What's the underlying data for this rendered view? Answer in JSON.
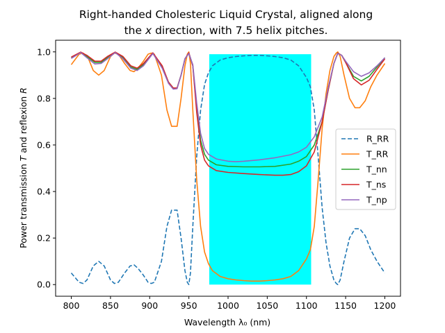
{
  "chart_data": {
    "type": "line",
    "title_line1": "Right-handed Cholesteric Liquid Crystal, aligned along",
    "title_line2": "the x direction, with 7.5 helix pitches.",
    "xlabel": "Wavelength λ₀ (nm)",
    "ylabel": "Power transmission T and reflexion R",
    "xlim": [
      780,
      1220
    ],
    "ylim": [
      -0.05,
      1.05
    ],
    "xticks": [
      800,
      850,
      900,
      950,
      1000,
      1050,
      1100,
      1150,
      1200
    ],
    "yticks": [
      0.0,
      0.2,
      0.4,
      0.6,
      0.8,
      1.0
    ],
    "ytick_labels": [
      "0.0",
      "0.2",
      "0.4",
      "0.6",
      "0.8",
      "1.0"
    ],
    "legend_position": "center-right",
    "band": {
      "x_start": 976,
      "x_end": 1106,
      "y_start": 0.0,
      "y_end": 0.99,
      "color": "#00ffff"
    },
    "series": [
      {
        "name": "R_RR",
        "color": "#1f77b4",
        "dash": true,
        "x": [
          800,
          810,
          815,
          820,
          828,
          835,
          842,
          850,
          855,
          860,
          868,
          875,
          880,
          885,
          892,
          898,
          902,
          906,
          915,
          922,
          928,
          935,
          940,
          945,
          948,
          950,
          952,
          955,
          960,
          965,
          970,
          975,
          980,
          990,
          1000,
          1010,
          1020,
          1030,
          1040,
          1050,
          1060,
          1070,
          1080,
          1090,
          1100,
          1105,
          1110,
          1115,
          1120,
          1125,
          1130,
          1135,
          1138,
          1140,
          1143,
          1148,
          1155,
          1162,
          1168,
          1175,
          1182,
          1190,
          1200
        ],
        "y": [
          0.05,
          0.01,
          0.005,
          0.02,
          0.08,
          0.1,
          0.08,
          0.02,
          0.005,
          0.01,
          0.05,
          0.08,
          0.085,
          0.07,
          0.04,
          0.01,
          0.005,
          0.01,
          0.1,
          0.25,
          0.32,
          0.32,
          0.2,
          0.06,
          0.01,
          0.0,
          0.05,
          0.25,
          0.55,
          0.75,
          0.86,
          0.91,
          0.94,
          0.965,
          0.975,
          0.98,
          0.983,
          0.985,
          0.985,
          0.983,
          0.98,
          0.975,
          0.965,
          0.94,
          0.89,
          0.85,
          0.75,
          0.55,
          0.33,
          0.18,
          0.08,
          0.02,
          0.005,
          0.0,
          0.02,
          0.1,
          0.2,
          0.24,
          0.24,
          0.21,
          0.15,
          0.1,
          0.05
        ]
      },
      {
        "name": "T_RR",
        "color": "#ff7f0e",
        "dash": false,
        "x": [
          800,
          810,
          815,
          822,
          828,
          835,
          842,
          850,
          855,
          860,
          868,
          875,
          880,
          885,
          892,
          898,
          902,
          906,
          915,
          922,
          928,
          935,
          940,
          945,
          948,
          950,
          952,
          955,
          960,
          965,
          970,
          975,
          980,
          990,
          1000,
          1010,
          1020,
          1030,
          1040,
          1050,
          1060,
          1070,
          1080,
          1090,
          1100,
          1105,
          1110,
          1115,
          1120,
          1125,
          1130,
          1135,
          1138,
          1140,
          1143,
          1148,
          1155,
          1162,
          1168,
          1175,
          1182,
          1190,
          1200
        ],
        "y": [
          0.945,
          0.99,
          0.995,
          0.97,
          0.92,
          0.9,
          0.92,
          0.98,
          0.995,
          0.99,
          0.95,
          0.92,
          0.915,
          0.93,
          0.96,
          0.99,
          0.995,
          0.99,
          0.9,
          0.75,
          0.68,
          0.68,
          0.8,
          0.94,
          0.99,
          1.0,
          0.95,
          0.75,
          0.45,
          0.25,
          0.14,
          0.09,
          0.06,
          0.035,
          0.025,
          0.02,
          0.017,
          0.015,
          0.015,
          0.017,
          0.02,
          0.025,
          0.035,
          0.06,
          0.11,
          0.15,
          0.25,
          0.45,
          0.67,
          0.82,
          0.92,
          0.98,
          0.995,
          1.0,
          0.98,
          0.9,
          0.8,
          0.76,
          0.76,
          0.79,
          0.85,
          0.9,
          0.95
        ]
      },
      {
        "name": "T_nn",
        "color": "#2ca02c",
        "dash": false,
        "x": [
          800,
          812,
          820,
          830,
          838,
          846,
          856,
          866,
          876,
          884,
          892,
          904,
          916,
          924,
          930,
          935,
          940,
          945,
          950,
          955,
          960,
          965,
          970,
          975,
          985,
          1000,
          1020,
          1040,
          1060,
          1080,
          1090,
          1100,
          1110,
          1120,
          1128,
          1135,
          1140,
          1145,
          1150,
          1160,
          1170,
          1180,
          1190,
          1200
        ],
        "y": [
          0.975,
          0.998,
          0.98,
          0.955,
          0.955,
          0.975,
          0.998,
          0.975,
          0.935,
          0.925,
          0.945,
          0.995,
          0.935,
          0.87,
          0.845,
          0.845,
          0.9,
          0.97,
          0.995,
          0.94,
          0.76,
          0.62,
          0.56,
          0.535,
          0.515,
          0.508,
          0.506,
          0.506,
          0.508,
          0.518,
          0.53,
          0.55,
          0.6,
          0.7,
          0.84,
          0.95,
          0.995,
          0.985,
          0.955,
          0.895,
          0.875,
          0.895,
          0.935,
          0.975
        ]
      },
      {
        "name": "T_ns",
        "color": "#d62728",
        "dash": false,
        "x": [
          800,
          812,
          820,
          830,
          838,
          846,
          856,
          866,
          876,
          884,
          892,
          904,
          916,
          924,
          930,
          935,
          940,
          945,
          950,
          955,
          960,
          965,
          970,
          975,
          985,
          1000,
          1020,
          1040,
          1060,
          1070,
          1080,
          1090,
          1100,
          1110,
          1120,
          1128,
          1135,
          1140,
          1145,
          1150,
          1160,
          1170,
          1180,
          1190,
          1200
        ],
        "y": [
          0.978,
          0.999,
          0.985,
          0.96,
          0.96,
          0.98,
          0.999,
          0.98,
          0.94,
          0.93,
          0.95,
          0.996,
          0.94,
          0.87,
          0.845,
          0.845,
          0.9,
          0.97,
          0.996,
          0.94,
          0.74,
          0.6,
          0.535,
          0.51,
          0.49,
          0.482,
          0.477,
          0.473,
          0.47,
          0.47,
          0.473,
          0.485,
          0.51,
          0.57,
          0.7,
          0.84,
          0.95,
          0.995,
          0.985,
          0.955,
          0.885,
          0.858,
          0.878,
          0.925,
          0.97
        ]
      },
      {
        "name": "T_np",
        "color": "#9467bd",
        "dash": false,
        "x": [
          800,
          812,
          820,
          830,
          838,
          846,
          856,
          866,
          876,
          884,
          892,
          904,
          916,
          924,
          930,
          935,
          940,
          945,
          950,
          955,
          960,
          965,
          970,
          975,
          985,
          1000,
          1010,
          1020,
          1040,
          1060,
          1080,
          1090,
          1100,
          1110,
          1120,
          1128,
          1135,
          1140,
          1145,
          1150,
          1160,
          1170,
          1180,
          1190,
          1200
        ],
        "y": [
          0.972,
          0.997,
          0.975,
          0.948,
          0.95,
          0.97,
          0.997,
          0.97,
          0.93,
          0.92,
          0.94,
          0.993,
          0.93,
          0.865,
          0.84,
          0.842,
          0.9,
          0.97,
          0.993,
          0.945,
          0.78,
          0.65,
          0.585,
          0.56,
          0.54,
          0.53,
          0.528,
          0.53,
          0.536,
          0.545,
          0.558,
          0.57,
          0.59,
          0.635,
          0.72,
          0.85,
          0.95,
          0.993,
          0.985,
          0.96,
          0.915,
          0.895,
          0.91,
          0.94,
          0.975
        ]
      }
    ]
  }
}
